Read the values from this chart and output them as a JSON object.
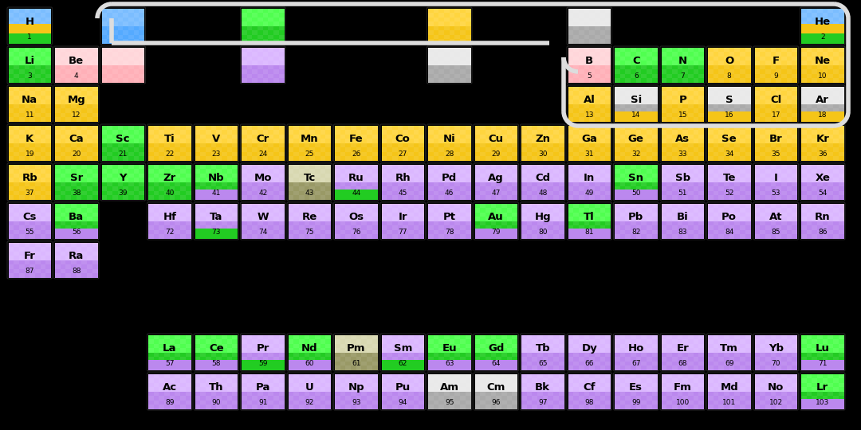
{
  "bg_color": "#000000",
  "outline_color": "#DDDDDD",
  "color_map": {
    "gold": "#F5C518",
    "green": "#22CC22",
    "blue": "#55AAFF",
    "pink": "#FFB0B8",
    "purple": "#BB88EE",
    "silver": "#AAAAAA",
    "olive": "#999966"
  },
  "elements": [
    {
      "symbol": "H",
      "num": 1,
      "col": 1,
      "row": 1,
      "color": "blue",
      "stripes": [
        "green",
        "gold"
      ]
    },
    {
      "symbol": "He",
      "num": 2,
      "col": 18,
      "row": 1,
      "color": "blue",
      "stripes": [
        "green",
        "gold"
      ]
    },
    {
      "symbol": "Li",
      "num": 3,
      "col": 1,
      "row": 2,
      "color": "green",
      "stripes": []
    },
    {
      "symbol": "Be",
      "num": 4,
      "col": 2,
      "row": 2,
      "color": "pink",
      "stripes": []
    },
    {
      "symbol": "B",
      "num": 5,
      "col": 13,
      "row": 2,
      "color": "pink",
      "stripes": []
    },
    {
      "symbol": "C",
      "num": 6,
      "col": 14,
      "row": 2,
      "color": "green",
      "stripes": []
    },
    {
      "symbol": "N",
      "num": 7,
      "col": 15,
      "row": 2,
      "color": "green",
      "stripes": []
    },
    {
      "symbol": "O",
      "num": 8,
      "col": 16,
      "row": 2,
      "color": "gold",
      "stripes": []
    },
    {
      "symbol": "F",
      "num": 9,
      "col": 17,
      "row": 2,
      "color": "gold",
      "stripes": []
    },
    {
      "symbol": "Ne",
      "num": 10,
      "col": 18,
      "row": 2,
      "color": "gold",
      "stripes": []
    },
    {
      "symbol": "Na",
      "num": 11,
      "col": 1,
      "row": 3,
      "color": "gold",
      "stripes": []
    },
    {
      "symbol": "Mg",
      "num": 12,
      "col": 2,
      "row": 3,
      "color": "gold",
      "stripes": []
    },
    {
      "symbol": "Al",
      "num": 13,
      "col": 13,
      "row": 3,
      "color": "gold",
      "stripes": []
    },
    {
      "symbol": "Si",
      "num": 14,
      "col": 14,
      "row": 3,
      "color": "silver",
      "stripes": [
        "gold"
      ]
    },
    {
      "symbol": "P",
      "num": 15,
      "col": 15,
      "row": 3,
      "color": "gold",
      "stripes": []
    },
    {
      "symbol": "S",
      "num": 16,
      "col": 16,
      "row": 3,
      "color": "silver",
      "stripes": [
        "gold"
      ]
    },
    {
      "symbol": "Cl",
      "num": 17,
      "col": 17,
      "row": 3,
      "color": "gold",
      "stripes": []
    },
    {
      "symbol": "Ar",
      "num": 18,
      "col": 18,
      "row": 3,
      "color": "silver",
      "stripes": [
        "gold"
      ]
    },
    {
      "symbol": "K",
      "num": 19,
      "col": 1,
      "row": 4,
      "color": "gold",
      "stripes": []
    },
    {
      "symbol": "Ca",
      "num": 20,
      "col": 2,
      "row": 4,
      "color": "gold",
      "stripes": []
    },
    {
      "symbol": "Sc",
      "num": 21,
      "col": 3,
      "row": 4,
      "color": "green",
      "stripes": []
    },
    {
      "symbol": "Ti",
      "num": 22,
      "col": 4,
      "row": 4,
      "color": "gold",
      "stripes": []
    },
    {
      "symbol": "V",
      "num": 23,
      "col": 5,
      "row": 4,
      "color": "gold",
      "stripes": []
    },
    {
      "symbol": "Cr",
      "num": 24,
      "col": 6,
      "row": 4,
      "color": "gold",
      "stripes": []
    },
    {
      "symbol": "Mn",
      "num": 25,
      "col": 7,
      "row": 4,
      "color": "gold",
      "stripes": []
    },
    {
      "symbol": "Fe",
      "num": 26,
      "col": 8,
      "row": 4,
      "color": "gold",
      "stripes": []
    },
    {
      "symbol": "Co",
      "num": 27,
      "col": 9,
      "row": 4,
      "color": "gold",
      "stripes": []
    },
    {
      "symbol": "Ni",
      "num": 28,
      "col": 10,
      "row": 4,
      "color": "gold",
      "stripes": []
    },
    {
      "symbol": "Cu",
      "num": 29,
      "col": 11,
      "row": 4,
      "color": "gold",
      "stripes": []
    },
    {
      "symbol": "Zn",
      "num": 30,
      "col": 12,
      "row": 4,
      "color": "gold",
      "stripes": []
    },
    {
      "symbol": "Ga",
      "num": 31,
      "col": 13,
      "row": 4,
      "color": "gold",
      "stripes": []
    },
    {
      "symbol": "Ge",
      "num": 32,
      "col": 14,
      "row": 4,
      "color": "gold",
      "stripes": []
    },
    {
      "symbol": "As",
      "num": 33,
      "col": 15,
      "row": 4,
      "color": "gold",
      "stripes": []
    },
    {
      "symbol": "Se",
      "num": 34,
      "col": 16,
      "row": 4,
      "color": "gold",
      "stripes": []
    },
    {
      "symbol": "Br",
      "num": 35,
      "col": 17,
      "row": 4,
      "color": "gold",
      "stripes": []
    },
    {
      "symbol": "Kr",
      "num": 36,
      "col": 18,
      "row": 4,
      "color": "gold",
      "stripes": []
    },
    {
      "symbol": "Rb",
      "num": 37,
      "col": 1,
      "row": 5,
      "color": "gold",
      "stripes": []
    },
    {
      "symbol": "Sr",
      "num": 38,
      "col": 2,
      "row": 5,
      "color": "green",
      "stripes": []
    },
    {
      "symbol": "Y",
      "num": 39,
      "col": 3,
      "row": 5,
      "color": "green",
      "stripes": []
    },
    {
      "symbol": "Zr",
      "num": 40,
      "col": 4,
      "row": 5,
      "color": "green",
      "stripes": []
    },
    {
      "symbol": "Nb",
      "num": 41,
      "col": 5,
      "row": 5,
      "color": "green",
      "stripes": [
        "purple"
      ]
    },
    {
      "symbol": "Mo",
      "num": 42,
      "col": 6,
      "row": 5,
      "color": "purple",
      "stripes": []
    },
    {
      "symbol": "Tc",
      "num": 43,
      "col": 7,
      "row": 5,
      "color": "olive",
      "stripes": []
    },
    {
      "symbol": "Ru",
      "num": 44,
      "col": 8,
      "row": 5,
      "color": "purple",
      "stripes": [
        "green"
      ]
    },
    {
      "symbol": "Rh",
      "num": 45,
      "col": 9,
      "row": 5,
      "color": "purple",
      "stripes": []
    },
    {
      "symbol": "Pd",
      "num": 46,
      "col": 10,
      "row": 5,
      "color": "purple",
      "stripes": []
    },
    {
      "symbol": "Ag",
      "num": 47,
      "col": 11,
      "row": 5,
      "color": "purple",
      "stripes": []
    },
    {
      "symbol": "Cd",
      "num": 48,
      "col": 12,
      "row": 5,
      "color": "purple",
      "stripes": []
    },
    {
      "symbol": "In",
      "num": 49,
      "col": 13,
      "row": 5,
      "color": "purple",
      "stripes": []
    },
    {
      "symbol": "Sn",
      "num": 50,
      "col": 14,
      "row": 5,
      "color": "green",
      "stripes": [
        "purple"
      ]
    },
    {
      "symbol": "Sb",
      "num": 51,
      "col": 15,
      "row": 5,
      "color": "purple",
      "stripes": []
    },
    {
      "symbol": "Te",
      "num": 52,
      "col": 16,
      "row": 5,
      "color": "purple",
      "stripes": []
    },
    {
      "symbol": "I",
      "num": 53,
      "col": 17,
      "row": 5,
      "color": "purple",
      "stripes": []
    },
    {
      "symbol": "Xe",
      "num": 54,
      "col": 18,
      "row": 5,
      "color": "purple",
      "stripes": []
    },
    {
      "symbol": "Cs",
      "num": 55,
      "col": 1,
      "row": 6,
      "color": "purple",
      "stripes": []
    },
    {
      "symbol": "Ba",
      "num": 56,
      "col": 2,
      "row": 6,
      "color": "green",
      "stripes": [
        "purple"
      ]
    },
    {
      "symbol": "Hf",
      "num": 72,
      "col": 4,
      "row": 6,
      "color": "purple",
      "stripes": []
    },
    {
      "symbol": "Ta",
      "num": 73,
      "col": 5,
      "row": 6,
      "color": "purple",
      "stripes": [
        "green"
      ]
    },
    {
      "symbol": "W",
      "num": 74,
      "col": 6,
      "row": 6,
      "color": "purple",
      "stripes": []
    },
    {
      "symbol": "Re",
      "num": 75,
      "col": 7,
      "row": 6,
      "color": "purple",
      "stripes": []
    },
    {
      "symbol": "Os",
      "num": 76,
      "col": 8,
      "row": 6,
      "color": "purple",
      "stripes": []
    },
    {
      "symbol": "Ir",
      "num": 77,
      "col": 9,
      "row": 6,
      "color": "purple",
      "stripes": []
    },
    {
      "symbol": "Pt",
      "num": 78,
      "col": 10,
      "row": 6,
      "color": "purple",
      "stripes": []
    },
    {
      "symbol": "Au",
      "num": 79,
      "col": 11,
      "row": 6,
      "color": "green",
      "stripes": [
        "purple"
      ]
    },
    {
      "symbol": "Hg",
      "num": 80,
      "col": 12,
      "row": 6,
      "color": "purple",
      "stripes": []
    },
    {
      "symbol": "Tl",
      "num": 81,
      "col": 13,
      "row": 6,
      "color": "green",
      "stripes": [
        "purple"
      ]
    },
    {
      "symbol": "Pb",
      "num": 82,
      "col": 14,
      "row": 6,
      "color": "purple",
      "stripes": []
    },
    {
      "symbol": "Bi",
      "num": 83,
      "col": 15,
      "row": 6,
      "color": "purple",
      "stripes": []
    },
    {
      "symbol": "Po",
      "num": 84,
      "col": 16,
      "row": 6,
      "color": "purple",
      "stripes": []
    },
    {
      "symbol": "At",
      "num": 85,
      "col": 17,
      "row": 6,
      "color": "purple",
      "stripes": []
    },
    {
      "symbol": "Rn",
      "num": 86,
      "col": 18,
      "row": 6,
      "color": "purple",
      "stripes": []
    },
    {
      "symbol": "Fr",
      "num": 87,
      "col": 1,
      "row": 7,
      "color": "purple",
      "stripes": []
    },
    {
      "symbol": "Ra",
      "num": 88,
      "col": 2,
      "row": 7,
      "color": "purple",
      "stripes": []
    },
    {
      "symbol": "La",
      "num": 57,
      "col": 4,
      "row": 9,
      "color": "green",
      "stripes": [
        "purple"
      ]
    },
    {
      "symbol": "Ce",
      "num": 58,
      "col": 5,
      "row": 9,
      "color": "green",
      "stripes": [
        "purple"
      ]
    },
    {
      "symbol": "Pr",
      "num": 59,
      "col": 6,
      "row": 9,
      "color": "purple",
      "stripes": [
        "green"
      ]
    },
    {
      "symbol": "Nd",
      "num": 60,
      "col": 7,
      "row": 9,
      "color": "green",
      "stripes": [
        "purple"
      ]
    },
    {
      "symbol": "Pm",
      "num": 61,
      "col": 8,
      "row": 9,
      "color": "olive",
      "stripes": []
    },
    {
      "symbol": "Sm",
      "num": 62,
      "col": 9,
      "row": 9,
      "color": "purple",
      "stripes": [
        "green"
      ]
    },
    {
      "symbol": "Eu",
      "num": 63,
      "col": 10,
      "row": 9,
      "color": "green",
      "stripes": [
        "purple"
      ]
    },
    {
      "symbol": "Gd",
      "num": 64,
      "col": 11,
      "row": 9,
      "color": "green",
      "stripes": [
        "purple"
      ]
    },
    {
      "symbol": "Tb",
      "num": 65,
      "col": 12,
      "row": 9,
      "color": "purple",
      "stripes": []
    },
    {
      "symbol": "Dy",
      "num": 66,
      "col": 13,
      "row": 9,
      "color": "purple",
      "stripes": []
    },
    {
      "symbol": "Ho",
      "num": 67,
      "col": 14,
      "row": 9,
      "color": "purple",
      "stripes": []
    },
    {
      "symbol": "Er",
      "num": 68,
      "col": 15,
      "row": 9,
      "color": "purple",
      "stripes": []
    },
    {
      "symbol": "Tm",
      "num": 69,
      "col": 16,
      "row": 9,
      "color": "purple",
      "stripes": []
    },
    {
      "symbol": "Yb",
      "num": 70,
      "col": 17,
      "row": 9,
      "color": "purple",
      "stripes": []
    },
    {
      "symbol": "Lu",
      "num": 71,
      "col": 18,
      "row": 9,
      "color": "green",
      "stripes": [
        "purple"
      ]
    },
    {
      "symbol": "Ac",
      "num": 89,
      "col": 4,
      "row": 10,
      "color": "purple",
      "stripes": []
    },
    {
      "symbol": "Th",
      "num": 90,
      "col": 5,
      "row": 10,
      "color": "purple",
      "stripes": []
    },
    {
      "symbol": "Pa",
      "num": 91,
      "col": 6,
      "row": 10,
      "color": "purple",
      "stripes": []
    },
    {
      "symbol": "U",
      "num": 92,
      "col": 7,
      "row": 10,
      "color": "purple",
      "stripes": []
    },
    {
      "symbol": "Np",
      "num": 93,
      "col": 8,
      "row": 10,
      "color": "purple",
      "stripes": []
    },
    {
      "symbol": "Pu",
      "num": 94,
      "col": 9,
      "row": 10,
      "color": "purple",
      "stripes": []
    },
    {
      "symbol": "Am",
      "num": 95,
      "col": 10,
      "row": 10,
      "color": "silver",
      "stripes": []
    },
    {
      "symbol": "Cm",
      "num": 96,
      "col": 11,
      "row": 10,
      "color": "silver",
      "stripes": []
    },
    {
      "symbol": "Bk",
      "num": 97,
      "col": 12,
      "row": 10,
      "color": "purple",
      "stripes": []
    },
    {
      "symbol": "Cf",
      "num": 98,
      "col": 13,
      "row": 10,
      "color": "purple",
      "stripes": []
    },
    {
      "symbol": "Es",
      "num": 99,
      "col": 14,
      "row": 10,
      "color": "purple",
      "stripes": []
    },
    {
      "symbol": "Fm",
      "num": 100,
      "col": 15,
      "row": 10,
      "color": "purple",
      "stripes": []
    },
    {
      "symbol": "Md",
      "num": 101,
      "col": 16,
      "row": 10,
      "color": "purple",
      "stripes": []
    },
    {
      "symbol": "No",
      "num": 102,
      "col": 17,
      "row": 10,
      "color": "purple",
      "stripes": []
    },
    {
      "symbol": "Lr",
      "num": 103,
      "col": 18,
      "row": 10,
      "color": "green",
      "stripes": [
        "purple"
      ]
    }
  ],
  "floating_squares": [
    {
      "col": 3,
      "row": 1,
      "color": "blue"
    },
    {
      "col": 6,
      "row": 1,
      "color": "green"
    },
    {
      "col": 10,
      "row": 1,
      "color": "gold"
    },
    {
      "col": 13,
      "row": 1,
      "color": "silver"
    },
    {
      "col": 3,
      "row": 2,
      "color": "pink"
    },
    {
      "col": 6,
      "row": 2,
      "color": "purple"
    },
    {
      "col": 10,
      "row": 2,
      "color": "silver"
    }
  ]
}
